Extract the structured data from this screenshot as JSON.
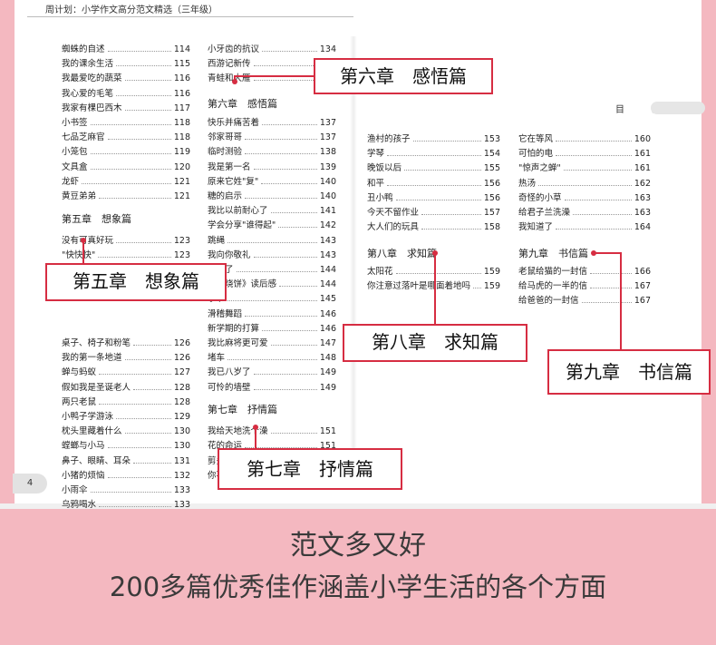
{
  "header_text": "周计划：小学作文高分范文精选（三年级）",
  "page_label": "目　录",
  "page_number": "4",
  "columns": [
    {
      "key": "c1",
      "entries": [
        {
          "title": "蜘蛛的自述",
          "page": "114"
        },
        {
          "title": "我的课余生活",
          "page": "115"
        },
        {
          "title": "我最爱吃的蔬菜",
          "page": "116"
        },
        {
          "title": "我心爱的毛笔",
          "page": "116"
        },
        {
          "title": "我家有棵巴西木",
          "page": "117"
        },
        {
          "title": "小书签",
          "page": "118"
        },
        {
          "title": "七品芝麻官",
          "page": "118"
        },
        {
          "title": "小笼包",
          "page": "119"
        },
        {
          "title": "文具盒",
          "page": "120"
        },
        {
          "title": "龙虾",
          "page": "121"
        },
        {
          "title": "黄豆弟弟",
          "page": "121"
        },
        {
          "title": "没有可真好玩",
          "page": "123"
        },
        {
          "title": "\"快快快\"",
          "page": "123"
        },
        {
          "title": "桌子、椅子和粉笔",
          "page": "126"
        },
        {
          "title": "我的第一条地道",
          "page": "126"
        },
        {
          "title": "蝉与蚂蚁",
          "page": "127"
        },
        {
          "title": "假如我是圣诞老人",
          "page": "128"
        },
        {
          "title": "两只老鼠",
          "page": "128"
        },
        {
          "title": "小鸭子学游泳",
          "page": "129"
        },
        {
          "title": "枕头里藏着什么",
          "page": "130"
        },
        {
          "title": "螳螂与小马",
          "page": "130"
        },
        {
          "title": "鼻子、眼睛、耳朵",
          "page": "131"
        },
        {
          "title": "小猪的烦恼",
          "page": "132"
        },
        {
          "title": "小雨伞",
          "page": "133"
        },
        {
          "title": "乌鸦喝水",
          "page": "133"
        }
      ]
    },
    {
      "key": "c2",
      "entries": [
        {
          "title": "小牙齿的抗议",
          "page": "134"
        },
        {
          "title": "西游记新传",
          "page": "135"
        },
        {
          "title": "青蛙和大雁",
          "page": "136"
        },
        {
          "title": "快乐并痛苦着",
          "page": "137"
        },
        {
          "title": "邻家哥哥",
          "page": "137"
        },
        {
          "title": "临时测验",
          "page": "138"
        },
        {
          "title": "我是第一名",
          "page": "139"
        },
        {
          "title": "原来它姓\"复\"",
          "page": "140"
        },
        {
          "title": "糖的启示",
          "page": "140"
        },
        {
          "title": "我比以前耐心了",
          "page": "141"
        },
        {
          "title": "学会分享\"谁得起\"",
          "page": "142"
        },
        {
          "title": "跳绳",
          "page": "143"
        },
        {
          "title": "我向你敬礼",
          "page": "143"
        },
        {
          "title": "文坏了",
          "page": "144"
        },
        {
          "title": "十个烧饼》读后感",
          "page": "144"
        },
        {
          "title": "季节",
          "page": "145"
        },
        {
          "title": "滑稽舞蹈",
          "page": "146"
        },
        {
          "title": "新学期的打算",
          "page": "146"
        },
        {
          "title": "我比麻将更可爱",
          "page": "147"
        },
        {
          "title": "堵车",
          "page": "148"
        },
        {
          "title": "我已八岁了",
          "page": "149"
        },
        {
          "title": "可怜的墙壁",
          "page": "149"
        },
        {
          "title": "我给天地洗个澡",
          "page": "151"
        },
        {
          "title": "花的命运",
          "page": "151"
        },
        {
          "title": "剪头发",
          "page": "152"
        },
        {
          "title": "你不在家的一天",
          "page": "152"
        }
      ]
    },
    {
      "key": "c3",
      "entries": [
        {
          "title": "渔村的孩子",
          "page": "153"
        },
        {
          "title": "学琴",
          "page": "154"
        },
        {
          "title": "晚饭以后",
          "page": "155"
        },
        {
          "title": "和平",
          "page": "156"
        },
        {
          "title": "丑小鸭",
          "page": "156"
        },
        {
          "title": "今天不留作业",
          "page": "157"
        },
        {
          "title": "大人们的玩具",
          "page": "158"
        },
        {
          "title": "太阳花",
          "page": "159"
        },
        {
          "title": "你注意过落叶是哪面着地吗",
          "page": "159"
        }
      ]
    },
    {
      "key": "c4",
      "entries": [
        {
          "title": "它在等风",
          "page": "160"
        },
        {
          "title": "可怕的电",
          "page": "161"
        },
        {
          "title": "\"惊声之蝉\"",
          "page": "161"
        },
        {
          "title": "热汤",
          "page": "162"
        },
        {
          "title": "奇怪的小草",
          "page": "163"
        },
        {
          "title": "给君子兰洗澡",
          "page": "163"
        },
        {
          "title": "我知道了",
          "page": "164"
        },
        {
          "title": "老鼠给猫的一封信",
          "page": "166"
        },
        {
          "title": "给马虎的一半的信",
          "page": "167"
        },
        {
          "title": "给爸爸的一封信",
          "page": "167"
        }
      ]
    }
  ],
  "sections": {
    "s5": "第五章　想象篇",
    "s6": "第六章　感悟篇",
    "s7": "第七章　抒情篇",
    "s8": "第八章　求知篇",
    "s9": "第九章　书信篇"
  },
  "callouts": {
    "c5": "第五章　想象篇",
    "c6": "第六章　感悟篇",
    "c7": "第七章　抒情篇",
    "c8": "第八章　求知篇",
    "c9": "第九章　书信篇"
  },
  "caption": {
    "line1": "范文多又好",
    "line2": "200多篇优秀佳作涵盖小学生活的各个方面"
  },
  "colors": {
    "accent": "#d62d42",
    "background": "#f4b8c0"
  }
}
